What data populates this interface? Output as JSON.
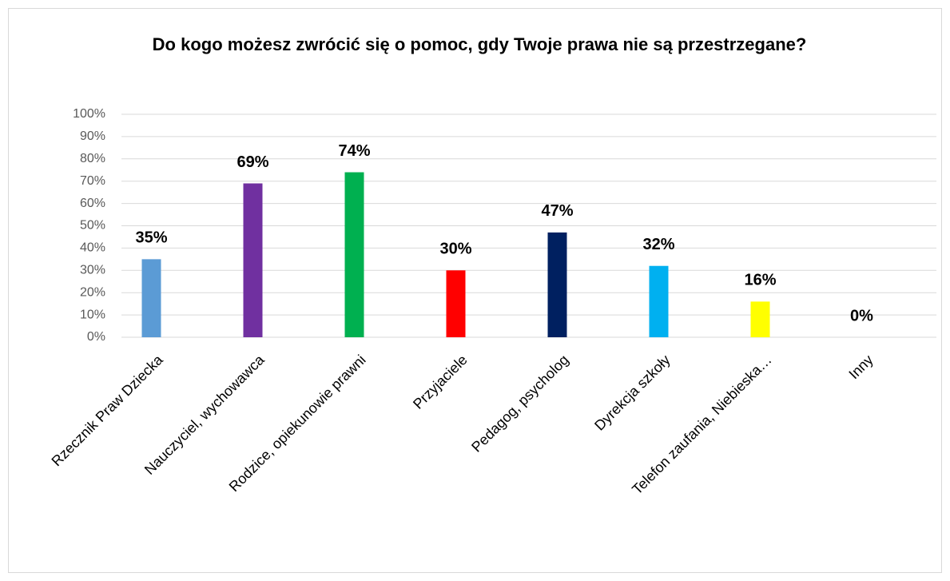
{
  "chart_data": {
    "type": "bar",
    "title": "Do kogo możesz zwrócić się o pomoc, gdy Twoje prawa nie są przestrzegane?",
    "categories": [
      "Rzecznik Praw Dziecka",
      "Nauczyciel, wychowawca",
      "Rodzice, opiekunowie prawni",
      "Przyjaciele",
      "Pedagog, psycholog",
      "Dyrekcja szkoły",
      "Telefon zaufania, Niebieska…",
      "Inny"
    ],
    "values": [
      35,
      69,
      74,
      30,
      47,
      32,
      16,
      0
    ],
    "value_labels": [
      "35%",
      "69%",
      "74%",
      "30%",
      "47%",
      "32%",
      "16%",
      "0%"
    ],
    "colors": [
      "#5b9bd5",
      "#7030a0",
      "#00b050",
      "#ff0000",
      "#002060",
      "#00b0f0",
      "#ffff00",
      "#a5a5a5"
    ],
    "ylim": [
      0,
      100
    ],
    "yticks": [
      {
        "value": 0,
        "label": "0%"
      },
      {
        "value": 10,
        "label": "10%"
      },
      {
        "value": 20,
        "label": "20%"
      },
      {
        "value": 30,
        "label": "30%"
      },
      {
        "value": 40,
        "label": "40%"
      },
      {
        "value": 50,
        "label": "50%"
      },
      {
        "value": 60,
        "label": "60%"
      },
      {
        "value": 70,
        "label": "70%"
      },
      {
        "value": 80,
        "label": "80%"
      },
      {
        "value": 90,
        "label": "90%"
      },
      {
        "value": 100,
        "label": "100%"
      }
    ],
    "grid": true
  }
}
